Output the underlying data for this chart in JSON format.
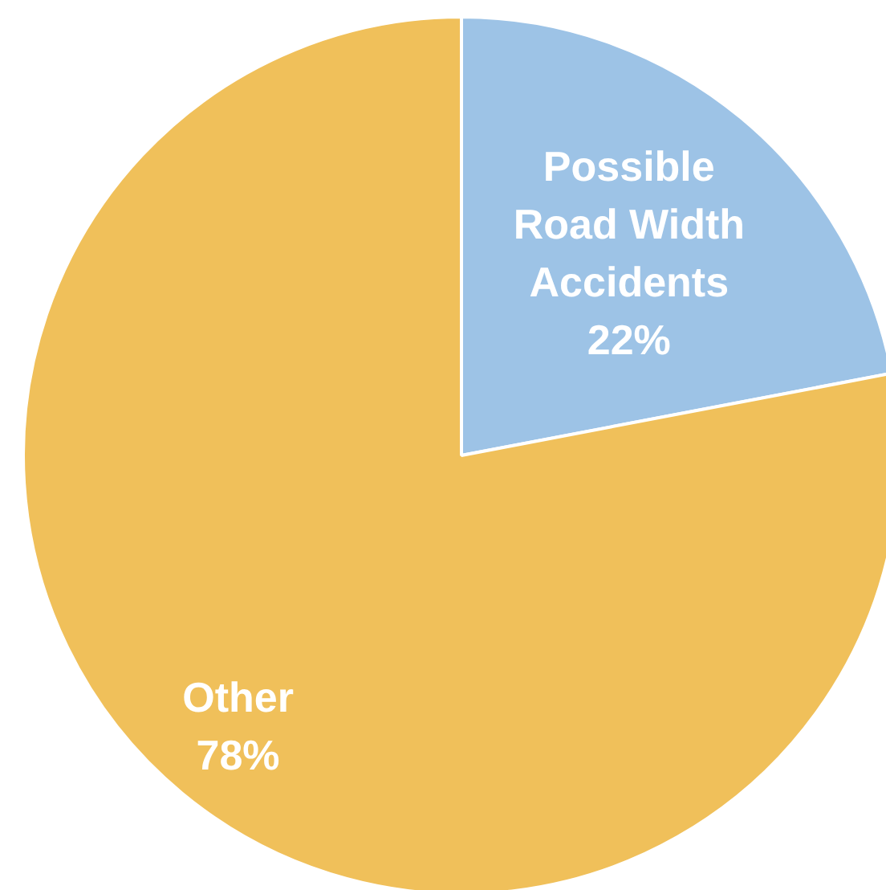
{
  "chart_data": {
    "type": "pie",
    "categories": [
      "Possible Road Width Accidents",
      "Other"
    ],
    "values": [
      22,
      78
    ],
    "colors": [
      "#9dc3e6",
      "#f0c05a"
    ],
    "value_labels": [
      "22%",
      "78%"
    ]
  }
}
